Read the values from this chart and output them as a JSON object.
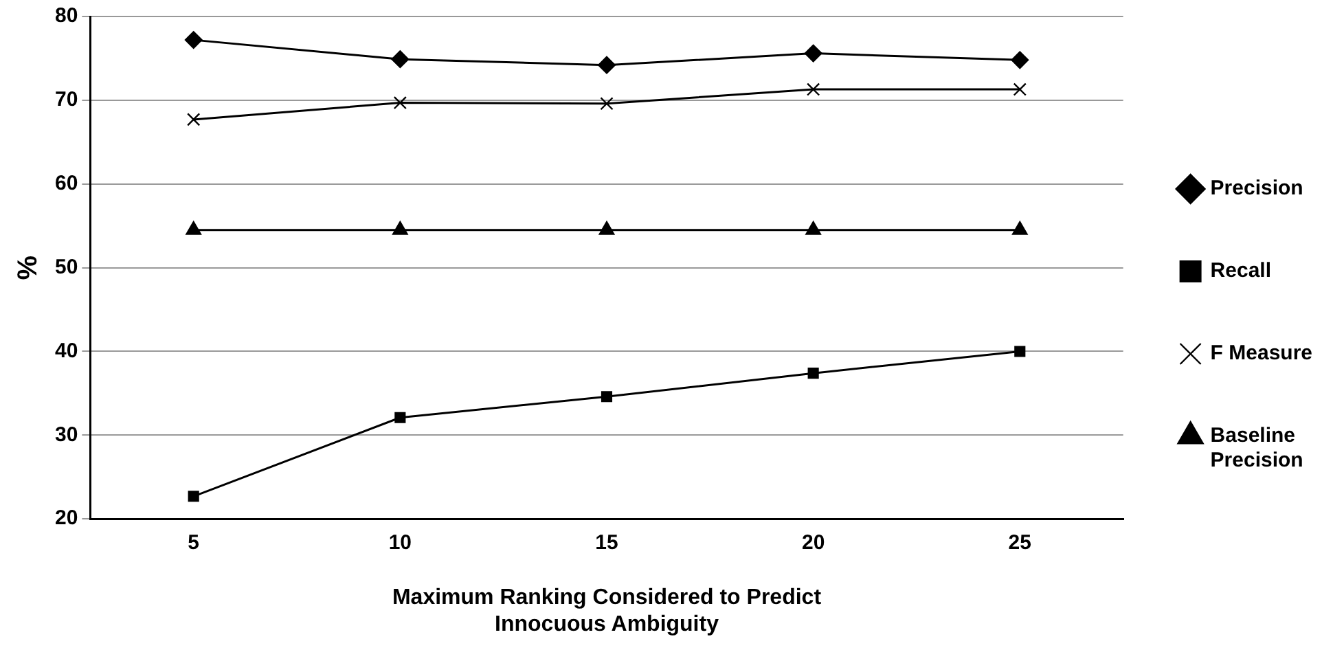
{
  "chart_data": {
    "type": "line",
    "xlabel": "Maximum Ranking Considered to Predict\nInnocuous Ambiguity",
    "ylabel": "%",
    "categories": [
      "5",
      "10",
      "15",
      "20",
      "25"
    ],
    "series": [
      {
        "name": "Precision",
        "color": "#000000",
        "marker": "diamond",
        "values": [
          77.2,
          74.9,
          74.2,
          75.6,
          74.8
        ]
      },
      {
        "name": "Recall",
        "color": "#000000",
        "marker": "square",
        "values": [
          22.7,
          32.1,
          34.6,
          37.4,
          40
        ]
      },
      {
        "name": "F Measure",
        "color": "#000000",
        "marker": "cross",
        "values": [
          67.7,
          69.7,
          69.6,
          71.3,
          71.3
        ]
      },
      {
        "name": "Baseline\nPrecision",
        "color": "#000000",
        "marker": "triangle",
        "values": [
          54.5,
          54.5,
          54.5,
          54.5,
          54.5
        ]
      }
    ],
    "ylim": [
      20,
      80
    ],
    "yticks": [
      20,
      30,
      40,
      50,
      60,
      70,
      80
    ],
    "grid": "y",
    "legend": "right"
  }
}
